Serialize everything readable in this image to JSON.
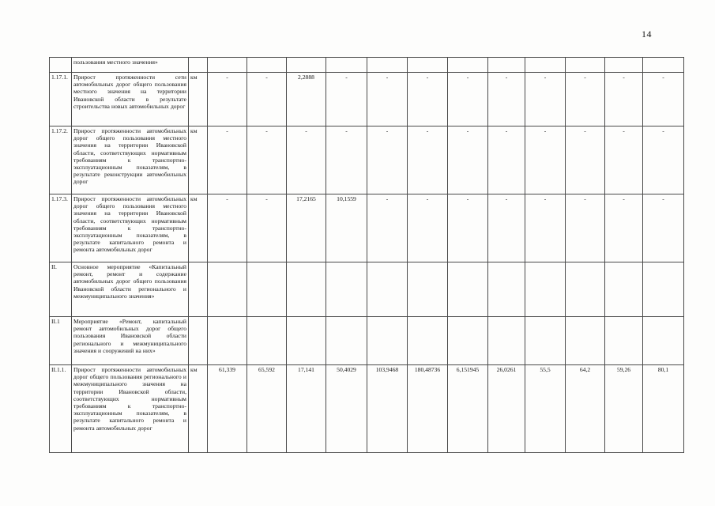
{
  "page": {
    "number": "14"
  },
  "table": {
    "rows": [
      {
        "id": "",
        "name": "пользования местного значения»",
        "unit": "",
        "values": [
          "",
          "",
          "",
          "",
          "",
          "",
          "",
          "",
          "",
          "",
          "",
          ""
        ]
      },
      {
        "id": "1.17.1.",
        "name": "Прирост протяженности сети автомобильных дорог общего пользования местного значения на территории Ивановской области в результате строительства новых автомобильных дорог",
        "unit": "км",
        "values": [
          "-",
          "-",
          "2,2888",
          "-",
          "-",
          "-",
          "-",
          "-",
          "-",
          "-",
          "-",
          "-"
        ]
      },
      {
        "id": "1.17.2.",
        "name": "Прирост протяженности автомобильных дорог общего пользования местного значения на территории Ивановской области, соответствующих нормативным требованиям к транспортно-эксплуатационным показателям, в результате реконструкции автомобильных дорог",
        "unit": "км",
        "values": [
          "-",
          "-",
          "-",
          "-",
          "-",
          "-",
          "-",
          "-",
          "-",
          "-",
          "-",
          "-"
        ]
      },
      {
        "id": "1.17.3.",
        "name": "Прирост протяженности автомобильных дорог общего пользования местного значения на территории Ивановской области, соответствующих нормативным требованиям к транспортно-эксплуатационным показателям, в результате капитального ремонта и ремонта автомобильных дорог",
        "unit": "км",
        "values": [
          "-",
          "-",
          "17,2165",
          "10,1559",
          "-",
          "-",
          "-",
          "-",
          "-",
          "-",
          "-",
          "-"
        ]
      },
      {
        "id": "II.",
        "name": "Основное мероприятие «Капитальный ремонт, ремонт и содержание автомобильных дорог общего пользования Ивановской области регионального и межмуниципального значения»",
        "unit": "",
        "values": [
          "",
          "",
          "",
          "",
          "",
          "",
          "",
          "",
          "",
          "",
          "",
          ""
        ]
      },
      {
        "id": "II.1",
        "name": "Мероприятие «Ремонт, капитальный ремонт автомобильных дорог общего пользования Ивановской области регионального и межмуниципального значения и сооружений на них»",
        "unit": "",
        "values": [
          "",
          "",
          "",
          "",
          "",
          "",
          "",
          "",
          "",
          "",
          "",
          ""
        ]
      },
      {
        "id": "II.1.1.",
        "name": "Прирост протяженности автомобильных дорог общего пользования регионального и межмуниципального значения на территории Ивановской области, соответствующих нормативным требованиям к транспортно-эксплуатационным показателям, в результате капитального ремонта и ремонта автомобильных дорог",
        "unit": "км",
        "values": [
          "61,339",
          "65,592",
          "17,141",
          "50,4029",
          "103,9468",
          "180,48736",
          "6,151945",
          "26,0261",
          "55,5",
          "64,2",
          "59,26",
          "80,1"
        ]
      }
    ]
  }
}
